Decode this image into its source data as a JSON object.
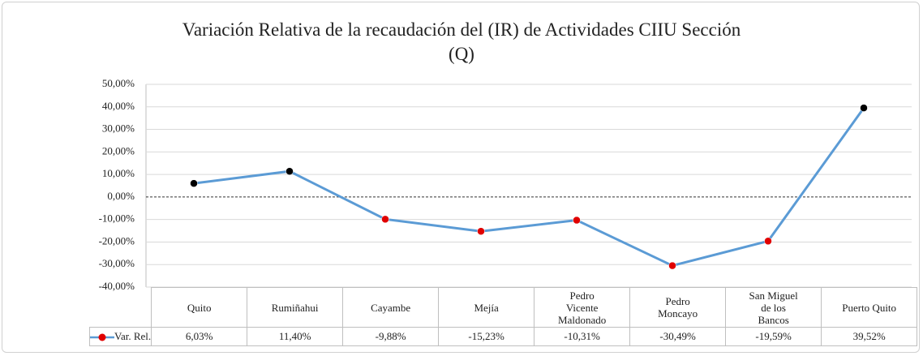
{
  "chart_data": {
    "type": "line",
    "title": "Variación Relativa de la recaudación del (IR) de Actividades CIIU Sección (Q)",
    "categories": [
      "Quito",
      "Rumiñahui",
      "Cayambe",
      "Mejía",
      "Pedro Vicente Maldonado",
      "Pedro Moncayo",
      "San Miguel de los Bancos",
      "Puerto Quito"
    ],
    "series": [
      {
        "name": "Var. Rel.",
        "color": "#5b9bd5",
        "values": [
          6.03,
          11.4,
          -9.88,
          -15.23,
          -10.31,
          -30.49,
          -19.59,
          39.52
        ],
        "value_labels": [
          "6,03%",
          "11,40%",
          "-9,88%",
          "-15,23%",
          "-10,31%",
          "-30,49%",
          "-19,59%",
          "39,52%"
        ]
      }
    ],
    "positive_marker_color": "#000000",
    "negative_marker_color": "#e00000",
    "ylim": [
      -40,
      50
    ],
    "yticks": [
      {
        "value": -40,
        "label": "-40,00%"
      },
      {
        "value": -30,
        "label": "-30,00%"
      },
      {
        "value": -20,
        "label": "-20,00%"
      },
      {
        "value": -10,
        "label": "-10,00%"
      },
      {
        "value": 0,
        "label": "0,00%"
      },
      {
        "value": 10,
        "label": "10,00%"
      },
      {
        "value": 20,
        "label": "20,00%"
      },
      {
        "value": 30,
        "label": "30,00%"
      },
      {
        "value": 40,
        "label": "40,00%"
      },
      {
        "value": 50,
        "label": "50,00%"
      }
    ],
    "grid": true,
    "zero_line": "dashed",
    "data_table": true
  }
}
